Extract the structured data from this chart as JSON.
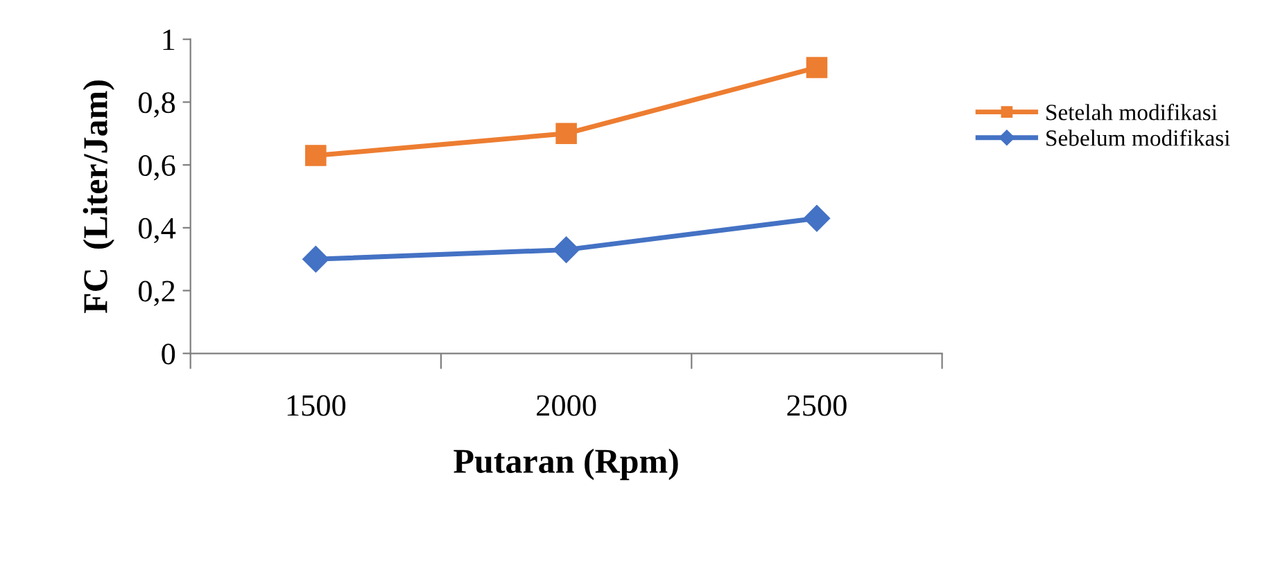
{
  "chart_data": {
    "type": "line",
    "xlabel": "Putaran (Rpm)",
    "ylabel": "FC  (Liter/Jam)",
    "categories": [
      "1500",
      "2000",
      "2500"
    ],
    "series": [
      {
        "name": "Setelah modifikasi",
        "color": "#ed7d31",
        "values": [
          0.63,
          0.7,
          0.91
        ],
        "marker": "square"
      },
      {
        "name": "Sebelum modifikasi",
        "color": "#4472c4",
        "values": [
          0.3,
          0.33,
          0.43
        ],
        "marker": "diamond"
      }
    ],
    "ylim": [
      0,
      1
    ],
    "yticks": [
      0,
      {
        "value": 0.2,
        "label": "0,2"
      },
      {
        "value": 0.4,
        "label": "0,4"
      },
      {
        "value": 0.6,
        "label": "0,6"
      },
      {
        "value": 0.8,
        "label": "0,8"
      },
      1
    ],
    "grid": false,
    "legend": "right",
    "line_style": "solid"
  }
}
